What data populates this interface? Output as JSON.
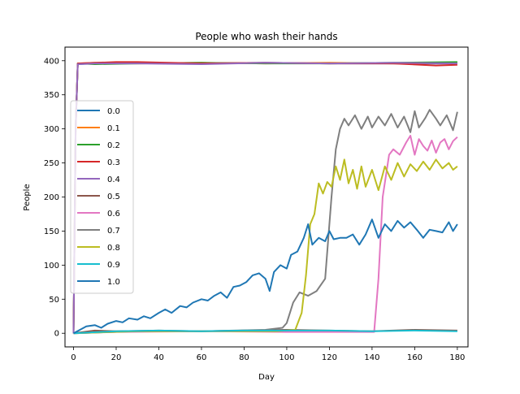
{
  "chart_data": {
    "type": "line",
    "title": "People who wash their hands",
    "xlabel": "Day",
    "ylabel": "People",
    "xlim": [
      -4,
      185
    ],
    "ylim": [
      -20,
      420
    ],
    "xticks": [
      0,
      20,
      40,
      60,
      80,
      100,
      120,
      140,
      160,
      180
    ],
    "yticks": [
      0,
      50,
      100,
      150,
      200,
      250,
      300,
      350,
      400
    ],
    "grid": false,
    "legend_position": "center-left",
    "series": [
      {
        "name": "0.0",
        "color": "#1f77b4",
        "points": [
          [
            0,
            0
          ],
          [
            1,
            300
          ],
          [
            2,
            395
          ],
          [
            10,
            396
          ],
          [
            30,
            397
          ],
          [
            60,
            396
          ],
          [
            90,
            397
          ],
          [
            120,
            396
          ],
          [
            150,
            396
          ],
          [
            180,
            396
          ]
        ]
      },
      {
        "name": "0.1",
        "color": "#ff7f0e",
        "points": [
          [
            0,
            0
          ],
          [
            1,
            300
          ],
          [
            2,
            396
          ],
          [
            10,
            397
          ],
          [
            30,
            396
          ],
          [
            60,
            397
          ],
          [
            90,
            396
          ],
          [
            120,
            397
          ],
          [
            150,
            396
          ],
          [
            180,
            397
          ]
        ]
      },
      {
        "name": "0.2",
        "color": "#2ca02c",
        "points": [
          [
            0,
            0
          ],
          [
            1,
            300
          ],
          [
            2,
            396
          ],
          [
            10,
            395
          ],
          [
            30,
            396
          ],
          [
            60,
            397
          ],
          [
            90,
            396
          ],
          [
            120,
            396
          ],
          [
            150,
            397
          ],
          [
            180,
            398
          ]
        ]
      },
      {
        "name": "0.3",
        "color": "#d62728",
        "points": [
          [
            0,
            0
          ],
          [
            1,
            300
          ],
          [
            2,
            396
          ],
          [
            10,
            397
          ],
          [
            20,
            398
          ],
          [
            30,
            398
          ],
          [
            60,
            396
          ],
          [
            90,
            397
          ],
          [
            120,
            396
          ],
          [
            150,
            396
          ],
          [
            170,
            393
          ],
          [
            180,
            394
          ]
        ]
      },
      {
        "name": "0.4",
        "color": "#9467bd",
        "points": [
          [
            0,
            0
          ],
          [
            1,
            300
          ],
          [
            2,
            395
          ],
          [
            10,
            396
          ],
          [
            30,
            396
          ],
          [
            60,
            395
          ],
          [
            90,
            397
          ],
          [
            120,
            396
          ],
          [
            150,
            397
          ],
          [
            180,
            396
          ]
        ]
      },
      {
        "name": "0.5",
        "color": "#8c564b",
        "points": [
          [
            0,
            0
          ],
          [
            10,
            4
          ],
          [
            20,
            3
          ],
          [
            40,
            4
          ],
          [
            60,
            3
          ],
          [
            80,
            4
          ],
          [
            100,
            5
          ],
          [
            120,
            4
          ],
          [
            140,
            3
          ],
          [
            160,
            5
          ],
          [
            180,
            4
          ]
        ]
      },
      {
        "name": "0.6",
        "color": "#e377c2",
        "points": [
          [
            0,
            0
          ],
          [
            20,
            2
          ],
          [
            60,
            3
          ],
          [
            100,
            2
          ],
          [
            138,
            2
          ],
          [
            141,
            2
          ],
          [
            143,
            80
          ],
          [
            145,
            200
          ],
          [
            148,
            262
          ],
          [
            150,
            270
          ],
          [
            153,
            262
          ],
          [
            156,
            280
          ],
          [
            158,
            290
          ],
          [
            160,
            262
          ],
          [
            162,
            285
          ],
          [
            164,
            275
          ],
          [
            166,
            268
          ],
          [
            168,
            283
          ],
          [
            170,
            265
          ],
          [
            172,
            280
          ],
          [
            174,
            285
          ],
          [
            176,
            270
          ],
          [
            178,
            282
          ],
          [
            180,
            288
          ]
        ]
      },
      {
        "name": "0.7",
        "color": "#7f7f7f",
        "points": [
          [
            0,
            0
          ],
          [
            30,
            3
          ],
          [
            60,
            3
          ],
          [
            90,
            5
          ],
          [
            98,
            8
          ],
          [
            100,
            15
          ],
          [
            103,
            45
          ],
          [
            106,
            60
          ],
          [
            110,
            55
          ],
          [
            114,
            62
          ],
          [
            118,
            80
          ],
          [
            121,
            200
          ],
          [
            123,
            270
          ],
          [
            125,
            300
          ],
          [
            127,
            315
          ],
          [
            129,
            305
          ],
          [
            132,
            320
          ],
          [
            135,
            300
          ],
          [
            138,
            318
          ],
          [
            140,
            302
          ],
          [
            143,
            318
          ],
          [
            146,
            305
          ],
          [
            149,
            322
          ],
          [
            152,
            302
          ],
          [
            155,
            318
          ],
          [
            158,
            295
          ],
          [
            160,
            326
          ],
          [
            162,
            302
          ],
          [
            165,
            316
          ],
          [
            167,
            328
          ],
          [
            170,
            315
          ],
          [
            172,
            305
          ],
          [
            175,
            320
          ],
          [
            178,
            298
          ],
          [
            180,
            325
          ]
        ]
      },
      {
        "name": "0.8",
        "color": "#bcbd22",
        "points": [
          [
            0,
            0
          ],
          [
            30,
            3
          ],
          [
            60,
            3
          ],
          [
            95,
            3
          ],
          [
            104,
            5
          ],
          [
            107,
            30
          ],
          [
            109,
            85
          ],
          [
            111,
            160
          ],
          [
            113,
            175
          ],
          [
            115,
            220
          ],
          [
            117,
            205
          ],
          [
            119,
            222
          ],
          [
            121,
            215
          ],
          [
            123,
            245
          ],
          [
            125,
            225
          ],
          [
            127,
            255
          ],
          [
            129,
            220
          ],
          [
            131,
            240
          ],
          [
            133,
            212
          ],
          [
            135,
            245
          ],
          [
            137,
            215
          ],
          [
            140,
            240
          ],
          [
            143,
            210
          ],
          [
            146,
            245
          ],
          [
            149,
            225
          ],
          [
            152,
            250
          ],
          [
            155,
            230
          ],
          [
            158,
            248
          ],
          [
            161,
            238
          ],
          [
            164,
            252
          ],
          [
            167,
            240
          ],
          [
            170,
            255
          ],
          [
            173,
            242
          ],
          [
            176,
            250
          ],
          [
            178,
            240
          ],
          [
            180,
            245
          ]
        ]
      },
      {
        "name": "0.9",
        "color": "#17becf",
        "points": [
          [
            0,
            0
          ],
          [
            20,
            3
          ],
          [
            40,
            4
          ],
          [
            60,
            3
          ],
          [
            80,
            4
          ],
          [
            100,
            4
          ],
          [
            120,
            4
          ],
          [
            140,
            3
          ],
          [
            160,
            4
          ],
          [
            180,
            3
          ]
        ]
      },
      {
        "name": "1.0",
        "color": "#1f77b4",
        "points": [
          [
            0,
            0
          ],
          [
            3,
            5
          ],
          [
            6,
            10
          ],
          [
            10,
            12
          ],
          [
            13,
            8
          ],
          [
            16,
            14
          ],
          [
            20,
            18
          ],
          [
            23,
            16
          ],
          [
            26,
            22
          ],
          [
            30,
            20
          ],
          [
            33,
            25
          ],
          [
            36,
            22
          ],
          [
            40,
            30
          ],
          [
            43,
            35
          ],
          [
            46,
            30
          ],
          [
            50,
            40
          ],
          [
            53,
            38
          ],
          [
            56,
            45
          ],
          [
            60,
            50
          ],
          [
            63,
            48
          ],
          [
            66,
            55
          ],
          [
            69,
            60
          ],
          [
            72,
            52
          ],
          [
            75,
            68
          ],
          [
            78,
            70
          ],
          [
            81,
            75
          ],
          [
            84,
            85
          ],
          [
            87,
            88
          ],
          [
            90,
            80
          ],
          [
            92,
            62
          ],
          [
            94,
            90
          ],
          [
            97,
            100
          ],
          [
            100,
            95
          ],
          [
            102,
            115
          ],
          [
            105,
            120
          ],
          [
            108,
            140
          ],
          [
            110,
            160
          ],
          [
            112,
            130
          ],
          [
            115,
            140
          ],
          [
            118,
            135
          ],
          [
            120,
            150
          ],
          [
            122,
            138
          ],
          [
            125,
            140
          ],
          [
            128,
            140
          ],
          [
            131,
            145
          ],
          [
            134,
            130
          ],
          [
            137,
            145
          ],
          [
            140,
            167
          ],
          [
            143,
            140
          ],
          [
            146,
            160
          ],
          [
            149,
            150
          ],
          [
            152,
            165
          ],
          [
            155,
            155
          ],
          [
            158,
            163
          ],
          [
            161,
            152
          ],
          [
            164,
            140
          ],
          [
            167,
            152
          ],
          [
            170,
            150
          ],
          [
            173,
            148
          ],
          [
            176,
            163
          ],
          [
            178,
            150
          ],
          [
            180,
            160
          ]
        ]
      }
    ]
  }
}
